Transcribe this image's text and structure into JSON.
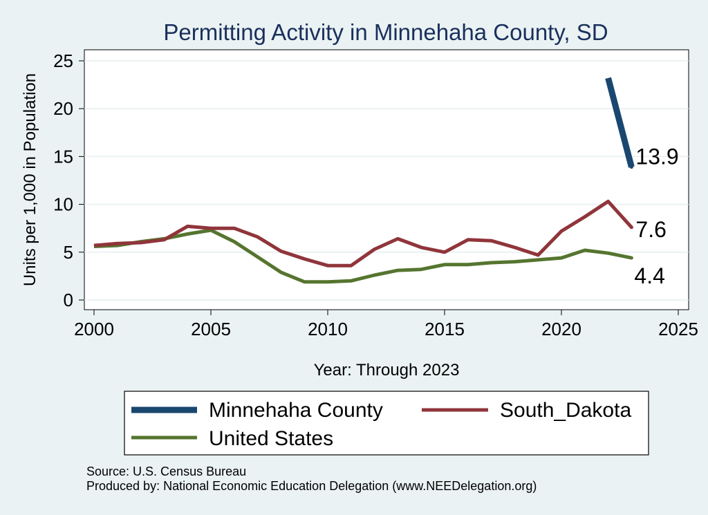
{
  "chart_data": {
    "type": "line",
    "title": "Permitting Activity in Minnehaha County, SD",
    "xlabel": "Year: Through 2023",
    "ylabel": "Units per 1,000 in Population",
    "xlim": [
      2000,
      2025
    ],
    "ylim": [
      0,
      25
    ],
    "xticks": [
      2000,
      2005,
      2010,
      2015,
      2020,
      2025
    ],
    "yticks": [
      0,
      5,
      10,
      15,
      20,
      25
    ],
    "grid": true,
    "series": [
      {
        "name": "Minnehaha County",
        "color": "#1a476f",
        "x": [
          2022,
          2023
        ],
        "y": [
          23.2,
          13.9
        ],
        "end_label": "13.9"
      },
      {
        "name": "South_Dakota",
        "color": "#90353b",
        "x": [
          2000,
          2001,
          2002,
          2003,
          2004,
          2005,
          2006,
          2007,
          2008,
          2009,
          2010,
          2011,
          2012,
          2013,
          2014,
          2015,
          2016,
          2017,
          2018,
          2019,
          2020,
          2021,
          2022,
          2023
        ],
        "y": [
          5.7,
          5.9,
          6.0,
          6.3,
          7.7,
          7.5,
          7.5,
          6.6,
          5.1,
          4.3,
          3.6,
          3.6,
          5.3,
          6.4,
          5.5,
          5.0,
          6.3,
          6.2,
          5.5,
          4.7,
          7.2,
          8.7,
          10.3,
          7.6
        ],
        "end_label": "7.6"
      },
      {
        "name": "United States",
        "color": "#55752f",
        "x": [
          2000,
          2001,
          2002,
          2003,
          2004,
          2005,
          2006,
          2007,
          2008,
          2009,
          2010,
          2011,
          2012,
          2013,
          2014,
          2015,
          2016,
          2017,
          2018,
          2019,
          2020,
          2021,
          2022,
          2023
        ],
        "y": [
          5.6,
          5.7,
          6.1,
          6.4,
          6.9,
          7.3,
          6.1,
          4.5,
          2.9,
          1.9,
          1.9,
          2.0,
          2.6,
          3.1,
          3.2,
          3.7,
          3.7,
          3.9,
          4.0,
          4.2,
          4.4,
          5.2,
          4.9,
          4.4
        ],
        "end_label": "4.4"
      }
    ],
    "legend": {
      "position": "bottom",
      "entries": [
        "Minnehaha County",
        "South_Dakota",
        "United States"
      ]
    },
    "source_lines": [
      "Source: U.S. Census Bureau",
      "Produced by: National Economic Education Delegation (www.NEEDelegation.org)"
    ]
  }
}
